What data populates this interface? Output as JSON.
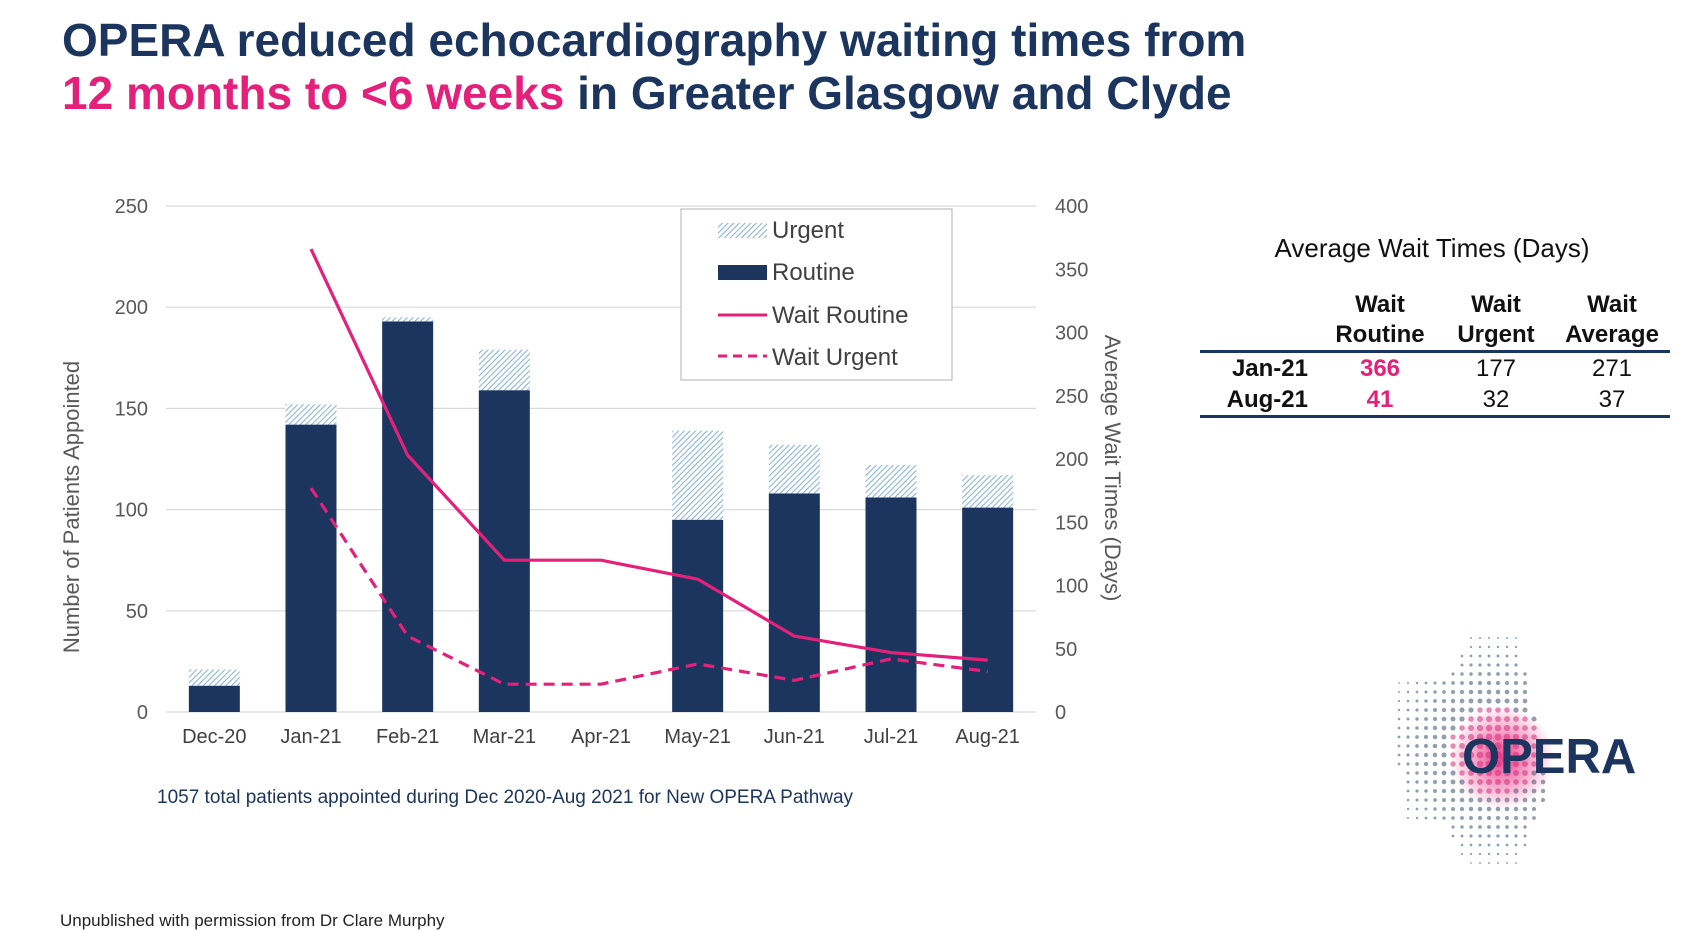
{
  "title": {
    "line1": "OPERA reduced echocardiography waiting times from",
    "highlight": "12 months to <6 weeks",
    "line2_rest": " in Greater Glasgow and Clyde"
  },
  "colors": {
    "navy": "#1c355e",
    "pink": "#e5207a",
    "urgent_hatch": "#8ab4dc",
    "grid": "#d9d9d9",
    "axis_text": "#595959"
  },
  "chart_data": {
    "type": "bar",
    "stacked": true,
    "categories": [
      "Dec-20",
      "Jan-21",
      "Feb-21",
      "Mar-21",
      "Apr-21",
      "May-21",
      "Jun-21",
      "Jul-21",
      "Aug-21"
    ],
    "series": [
      {
        "name": "Routine",
        "type": "bar",
        "axis": "left",
        "color": "#1c355e",
        "values": [
          13,
          142,
          193,
          159,
          0,
          95,
          108,
          106,
          101
        ]
      },
      {
        "name": "Urgent",
        "type": "bar",
        "axis": "left",
        "pattern": "hatched",
        "color": "#8ab4dc",
        "values": [
          8,
          10,
          2,
          20,
          0,
          44,
          24,
          16,
          16
        ]
      },
      {
        "name": "Wait Routine",
        "type": "line",
        "axis": "right",
        "color": "#e5207a",
        "dash": "solid",
        "values": [
          null,
          366,
          203,
          120,
          120,
          105,
          60,
          47,
          41
        ]
      },
      {
        "name": "Wait Urgent",
        "type": "line",
        "axis": "right",
        "color": "#e5207a",
        "dash": "dashed",
        "values": [
          null,
          177,
          60,
          22,
          22,
          38,
          25,
          42,
          32
        ]
      }
    ],
    "ylabel": "Number of Patients Appointed",
    "ylim": [
      0,
      250
    ],
    "yticks": [
      0,
      50,
      100,
      150,
      200,
      250
    ],
    "y2label": "Average Wait Times (Days)",
    "y2lim": [
      0,
      400
    ],
    "y2ticks": [
      0,
      50,
      100,
      150,
      200,
      250,
      300,
      350,
      400
    ],
    "grid": true,
    "legend_position": "top-right",
    "legend": [
      "Urgent",
      "Routine",
      "Wait Routine",
      "Wait Urgent"
    ]
  },
  "caption": "1057 total patients appointed during Dec 2020-Aug 2021 for New OPERA Pathway",
  "wait_table": {
    "title": "Average Wait Times (Days)",
    "headers": [
      {
        "line1": "Wait",
        "line2": "Routine"
      },
      {
        "line1": "Wait",
        "line2": "Urgent"
      },
      {
        "line1": "Wait",
        "line2": "Average"
      }
    ],
    "rows": [
      {
        "label": "Jan-21",
        "routine": "366",
        "urgent": "177",
        "average": "271"
      },
      {
        "label": "Aug-21",
        "routine": "41",
        "urgent": "32",
        "average": "37"
      }
    ]
  },
  "logo_text": "OPERA",
  "footnote": "Unpublished with permission from Dr Clare Murphy"
}
